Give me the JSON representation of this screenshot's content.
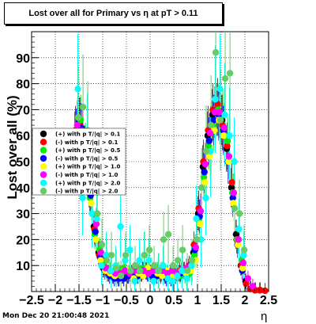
{
  "chart_data": {
    "type": "scatter",
    "title": "Lost over all for Primary vs   η at pT > 0.11",
    "xlabel": "η",
    "ylabel": "Lost over all (%)",
    "xlim": [
      -2.5,
      2.5
    ],
    "ylim": [
      0,
      100
    ],
    "xticks": [
      "−2.5",
      "−2",
      "−1.5",
      "−1",
      "−0.5",
      "0",
      "0.5",
      "1",
      "1.5",
      "2",
      "2.5"
    ],
    "yticks": [
      "10",
      "20",
      "30",
      "40",
      "50",
      "60",
      "70",
      "80",
      "90"
    ],
    "grid": true,
    "legend_position": "left-middle",
    "series": [
      {
        "name": "(+) with p T/|q| > 0.1",
        "color": "#000000",
        "x": [
          -1.55,
          -1.45,
          -1.35,
          -1.25,
          -1.15,
          -1.05,
          -0.95,
          -0.85,
          -0.75,
          -0.65,
          -0.55,
          -0.45,
          -0.35,
          -0.25,
          -0.15,
          -0.05,
          0.05,
          0.15,
          0.25,
          0.35,
          0.45,
          0.55,
          0.65,
          0.75,
          0.85,
          0.95,
          1.05,
          1.15,
          1.25,
          1.35,
          1.45,
          1.55,
          1.65,
          1.75,
          1.85,
          1.95,
          2.05,
          2.15,
          2.25,
          2.35
        ],
        "y": [
          60,
          65,
          55,
          40,
          25,
          15,
          9,
          7,
          6,
          6,
          6,
          6,
          7,
          7,
          7,
          8,
          7,
          7,
          7,
          6,
          6,
          7,
          7,
          8,
          9,
          15,
          30,
          48,
          60,
          68,
          70,
          66,
          55,
          40,
          22,
          10,
          4,
          1,
          0.5,
          0.5
        ]
      },
      {
        "name": "(-) with p T/|q| > 0.1",
        "color": "#ff0000",
        "x": [
          -1.55,
          -1.45,
          -1.35,
          -1.25,
          -1.15,
          -1.05,
          -0.95,
          -0.85,
          -0.75,
          -0.65,
          -0.55,
          -0.45,
          -0.35,
          -0.25,
          -0.15,
          -0.05,
          0.05,
          0.15,
          0.25,
          0.35,
          0.45,
          0.55,
          0.65,
          0.75,
          0.85,
          0.95,
          1.05,
          1.15,
          1.25,
          1.35,
          1.45,
          1.55,
          1.65,
          1.75,
          1.85,
          1.95,
          2.05,
          2.15,
          2.25,
          2.35,
          2.45
        ],
        "y": [
          62,
          64,
          52,
          38,
          24,
          14,
          10,
          7,
          6,
          5,
          6,
          6,
          7,
          8,
          7,
          8,
          7,
          7,
          6,
          6,
          7,
          7,
          8,
          8,
          10,
          18,
          32,
          50,
          62,
          70,
          72,
          64,
          56,
          42,
          20,
          10,
          3,
          1,
          0.5,
          0.5,
          0.3
        ]
      },
      {
        "name": "(+) with p T/|q| > 0.5",
        "color": "#00ee00",
        "x": [
          -1.55,
          -1.45,
          -1.35,
          -1.25,
          -1.15,
          -1.05,
          -0.95,
          -0.85,
          -0.75,
          -0.65,
          -0.55,
          -0.45,
          -0.35,
          -0.25,
          -0.15,
          -0.05,
          0.05,
          0.15,
          0.25,
          0.35,
          0.45,
          0.55,
          0.65,
          0.75,
          0.85,
          0.95,
          1.05,
          1.15,
          1.25,
          1.35,
          1.45,
          1.55,
          1.65,
          1.75,
          1.85,
          1.95
        ],
        "y": [
          58,
          66,
          56,
          36,
          22,
          16,
          10,
          8,
          7,
          8,
          9,
          7,
          6,
          6,
          9,
          9,
          6,
          8,
          8,
          7,
          5,
          6,
          6,
          6,
          7,
          14,
          28,
          44,
          56,
          64,
          70,
          68,
          58,
          38,
          20,
          12
        ]
      },
      {
        "name": "(-) with p T/|q| > 0.5",
        "color": "#0000ff",
        "x": [
          -1.55,
          -1.45,
          -1.35,
          -1.25,
          -1.15,
          -1.05,
          -0.95,
          -0.85,
          -0.75,
          -0.65,
          -0.55,
          -0.45,
          -0.35,
          -0.25,
          -0.15,
          -0.05,
          0.05,
          0.15,
          0.25,
          0.35,
          0.45,
          0.55,
          0.65,
          0.75,
          0.85,
          0.95,
          1.05,
          1.15,
          1.25,
          1.35,
          1.45,
          1.55,
          1.65,
          1.75,
          1.85,
          1.95
        ],
        "y": [
          61,
          63,
          50,
          37,
          23,
          13,
          8,
          6,
          5,
          5,
          5,
          6,
          6,
          6,
          8,
          7,
          6,
          6,
          7,
          5,
          5,
          6,
          7,
          7,
          9,
          16,
          29,
          46,
          58,
          66,
          68,
          62,
          50,
          36,
          18,
          8
        ]
      },
      {
        "name": "(+) with p T/|q| > 1.0",
        "color": "#ffff00",
        "x": [
          -1.55,
          -1.45,
          -1.35,
          -1.25,
          -1.15,
          -1.05,
          -0.95,
          -0.85,
          -0.75,
          -0.65,
          -0.55,
          -0.45,
          -0.35,
          -0.25,
          -0.15,
          -0.05,
          0.05,
          0.15,
          0.25,
          0.35,
          0.45,
          0.55,
          0.65,
          0.75,
          0.85,
          0.95,
          1.05,
          1.15,
          1.25,
          1.35,
          1.45,
          1.55,
          1.65,
          1.75,
          1.85,
          1.95
        ],
        "y": [
          56,
          60,
          48,
          34,
          20,
          12,
          8,
          7,
          6,
          7,
          8,
          8,
          5,
          7,
          6,
          9,
          8,
          7,
          6,
          8,
          6,
          6,
          8,
          7,
          8,
          12,
          26,
          42,
          52,
          62,
          66,
          60,
          50,
          34,
          18,
          9
        ]
      },
      {
        "name": "(-) with p T/|q| > 1.0",
        "color": "#ff00ff",
        "x": [
          -1.55,
          -1.45,
          -1.35,
          -1.25,
          -1.15,
          -1.05,
          -0.95,
          -0.85,
          -0.75,
          -0.65,
          -0.55,
          -0.45,
          -0.35,
          -0.25,
          -0.15,
          -0.05,
          0.05,
          0.15,
          0.25,
          0.35,
          0.45,
          0.55,
          0.65,
          0.75,
          0.85,
          0.95,
          1.05,
          1.15,
          1.25,
          1.35,
          1.45,
          1.55,
          1.65,
          1.75,
          1.85,
          1.95,
          2.05,
          2.15
        ],
        "y": [
          64,
          62,
          54,
          39,
          26,
          15,
          9,
          8,
          7,
          7,
          8,
          7,
          8,
          8,
          8,
          7,
          8,
          8,
          8,
          7,
          8,
          7,
          8,
          9,
          10,
          17,
          31,
          49,
          61,
          69,
          69,
          63,
          52,
          38,
          20,
          11,
          5,
          2
        ]
      },
      {
        "name": "(+) with p T/|q| > 2.0",
        "color": "#00ffff",
        "x": [
          -1.55,
          -1.45,
          -1.35,
          -1.25,
          -1.15,
          -1.05,
          -0.95,
          -0.85,
          -0.75,
          -0.65,
          -0.55,
          -0.45,
          -0.35,
          -0.25,
          -0.15,
          -0.05,
          0.05,
          0.15,
          0.25,
          0.35,
          0.45,
          0.55,
          0.65,
          0.75,
          0.85,
          0.95,
          1.05,
          1.15,
          1.25,
          1.35,
          1.45,
          1.55,
          1.65,
          1.75,
          1.85,
          1.95
        ],
        "y": [
          78,
          36,
          58,
          30,
          28,
          10,
          14,
          8,
          10,
          25,
          12,
          16,
          4,
          12,
          14,
          12,
          4,
          8,
          10,
          5,
          4,
          6,
          8,
          5,
          10,
          28,
          20,
          36,
          54,
          74,
          78,
          68,
          60,
          50,
          24,
          14
        ]
      },
      {
        "name": "(-) with p T/|q| > 2.0",
        "color": "#66cc66",
        "x": [
          -1.55,
          -1.45,
          -1.35,
          -1.25,
          -1.15,
          -1.05,
          -0.95,
          -0.85,
          -0.75,
          -0.65,
          -0.55,
          -0.45,
          -0.35,
          -0.25,
          -0.15,
          -0.05,
          0.05,
          0.15,
          0.25,
          0.35,
          0.45,
          0.55,
          0.65,
          0.75,
          0.85,
          0.95,
          1.05,
          1.15,
          1.25,
          1.35,
          1.45,
          1.55,
          1.65,
          1.75,
          1.85,
          1.95
        ],
        "y": [
          67,
          71,
          62,
          44,
          30,
          18,
          12,
          14,
          9,
          6,
          14,
          8,
          10,
          8,
          14,
          16,
          10,
          8,
          20,
          22,
          10,
          12,
          16,
          8,
          12,
          20,
          40,
          54,
          64,
          92,
          66,
          82,
          84,
          32,
          30,
          16
        ]
      }
    ]
  },
  "footer": {
    "timestamp": "Mon Dec 20 21:00:48 2021"
  }
}
